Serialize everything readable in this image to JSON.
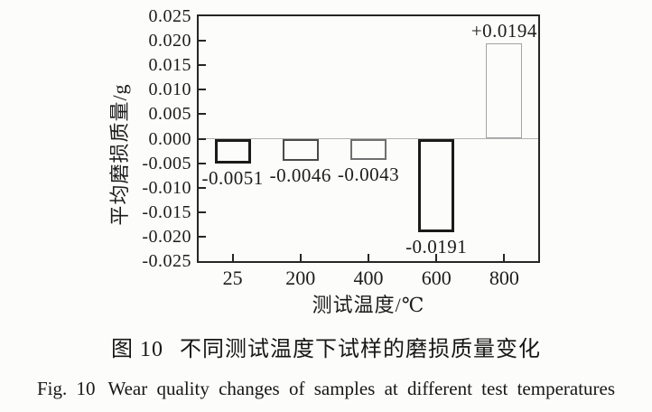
{
  "figure": {
    "caption_zh_prefix": "图 10",
    "caption_zh_text": "不同测试温度下试样的磨损质量变化",
    "caption_en_prefix": "Fig. 10",
    "caption_en_text": "Wear quality changes of samples at different test temperatures"
  },
  "chart_data": {
    "type": "bar",
    "title": "",
    "categories": [
      "25",
      "200",
      "400",
      "600",
      "800"
    ],
    "values": [
      -0.0051,
      -0.0046,
      -0.0043,
      -0.0191,
      0.0194
    ],
    "bar_labels": [
      "-0.0051",
      "-0.0046",
      "-0.0043",
      "-0.0191",
      "+0.0194"
    ],
    "xlabel": "测试温度/℃",
    "ylabel": "平均磨损质量/g",
    "ylim": [
      -0.025,
      0.025
    ],
    "ytick_step": 0.005,
    "ytick_labels": [
      "0.025",
      "0.020",
      "0.015",
      "0.010",
      "0.005",
      "0.000",
      "-0.005",
      "-0.010",
      "-0.015",
      "-0.020",
      "-0.025"
    ],
    "grid": false,
    "legend": null,
    "zero_line": true,
    "bar_fill": "none",
    "frame_color": "#262626",
    "zero_line_color": "#b2b2b2",
    "bar_border_colors": [
      "#1a1a1a",
      "#4a4a4a",
      "#6f6f6f",
      "#1a1a1a",
      "#a3a3a3"
    ],
    "bar_border_widths": [
      3,
      2,
      2,
      3,
      1.5
    ]
  }
}
